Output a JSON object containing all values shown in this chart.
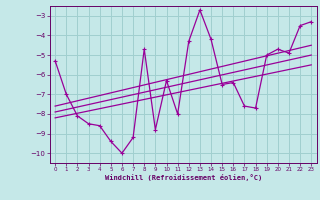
{
  "xlabel": "Windchill (Refroidissement éolien,°C)",
  "bg_color": "#c5e8e8",
  "grid_color": "#a0cfcf",
  "line_color": "#990099",
  "spine_color": "#660066",
  "tick_color": "#660066",
  "xlim": [
    -0.5,
    23.5
  ],
  "ylim": [
    -10.5,
    -2.5
  ],
  "yticks": [
    -10,
    -9,
    -8,
    -7,
    -6,
    -5,
    -4,
    -3
  ],
  "xticks": [
    0,
    1,
    2,
    3,
    4,
    5,
    6,
    7,
    8,
    9,
    10,
    11,
    12,
    13,
    14,
    15,
    16,
    17,
    18,
    19,
    20,
    21,
    22,
    23
  ],
  "main_x": [
    0,
    1,
    2,
    3,
    4,
    5,
    6,
    7,
    8,
    9,
    10,
    11,
    12,
    13,
    14,
    15,
    16,
    17,
    18,
    19,
    20,
    21,
    22,
    23
  ],
  "main_y": [
    -5.3,
    -7.0,
    -8.1,
    -8.5,
    -8.6,
    -9.4,
    -10.0,
    -9.2,
    -4.7,
    -8.8,
    -6.3,
    -8.0,
    -4.3,
    -2.7,
    -4.2,
    -6.5,
    -6.4,
    -7.6,
    -7.7,
    -5.0,
    -4.7,
    -4.9,
    -3.5,
    -3.3
  ],
  "line1_x": [
    0,
    23
  ],
  "line1_y": [
    -7.6,
    -4.5
  ],
  "line2_x": [
    0,
    23
  ],
  "line2_y": [
    -7.9,
    -5.0
  ],
  "line3_x": [
    0,
    23
  ],
  "line3_y": [
    -8.2,
    -5.5
  ]
}
